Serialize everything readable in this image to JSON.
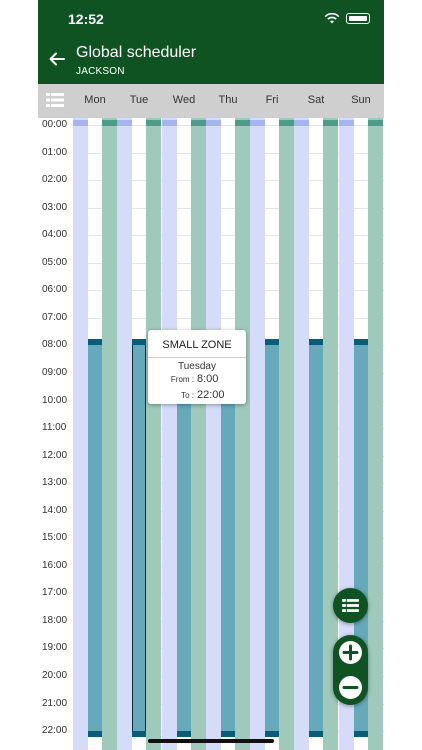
{
  "status": {
    "time": "12:52"
  },
  "header": {
    "title": "Global scheduler",
    "subtitle": "JACKSON"
  },
  "days": [
    "Mon",
    "Tue",
    "Wed",
    "Thu",
    "Fri",
    "Sat",
    "Sun"
  ],
  "times": [
    "00:00",
    "01:00",
    "02:00",
    "03:00",
    "04:00",
    "05:00",
    "06:00",
    "07:00",
    "08:00",
    "09:00",
    "10:00",
    "11:00",
    "12:00",
    "13:00",
    "14:00",
    "15:00",
    "16:00",
    "17:00",
    "18:00",
    "19:00",
    "20:00",
    "21:00",
    "22:00"
  ],
  "schedule": {
    "from_hour": 8,
    "to_hour": 22
  },
  "tooltip": {
    "zone": "SMALL ZONE",
    "day": "Tuesday",
    "from_label": "From :",
    "from_value": "8:00",
    "to_label": "To :",
    "to_value": "22:00"
  },
  "colors": {
    "header": "#0f5323",
    "schedule": "#66a9bb",
    "blue_col": "#d4dcf9",
    "teal_col": "#9ec9bb"
  }
}
